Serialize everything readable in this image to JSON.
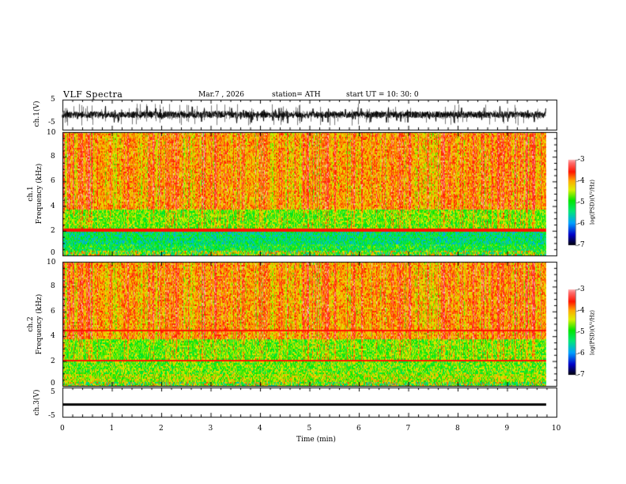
{
  "header": {
    "title": "VLF  Spectra",
    "date": "Mar.7  , 2026",
    "station": "station= ATH",
    "start": "start  UT  =    10: 30: 0"
  },
  "chart_data": [
    {
      "type": "line",
      "name": "ch1-waveform",
      "ylabel": "ch.1(V)",
      "ylim": [
        -5,
        5
      ],
      "yticks": [
        "5",
        "-5"
      ],
      "xlim": [
        0,
        10
      ],
      "data_end_min": 9.8
    },
    {
      "type": "heatmap",
      "name": "ch1-spectrogram",
      "ylabel_line1": "ch.1",
      "ylabel_line2": "Frequency (kHz)",
      "ylim": [
        0,
        10
      ],
      "yticks": [
        "0",
        "2",
        "4",
        "6",
        "8",
        "10"
      ],
      "xlim": [
        0,
        10
      ],
      "colorbar": {
        "label": "log(PSD)(V²/Hz)",
        "range": [
          -7,
          -3
        ],
        "ticks": [
          "-3",
          "-4",
          "-5",
          "-6",
          "-7"
        ]
      }
    },
    {
      "type": "heatmap",
      "name": "ch2-spectrogram",
      "ylabel_line1": "ch.2",
      "ylabel_line2": "Frequency (kHz)",
      "ylim": [
        0,
        10
      ],
      "yticks": [
        "0",
        "2",
        "4",
        "6",
        "8",
        "10"
      ],
      "xlim": [
        0,
        10
      ],
      "colorbar": {
        "label": "log(PSD)(V²/Hz)",
        "range": [
          -7,
          -3
        ],
        "ticks": [
          "-3",
          "-4",
          "-5",
          "-6",
          "-7"
        ]
      }
    },
    {
      "type": "line",
      "name": "ch3-waveform",
      "ylabel": "ch.3(V)",
      "ylim": [
        -5,
        5
      ],
      "yticks": [
        "5",
        "-5"
      ],
      "approx_level": -0.2,
      "xlim": [
        0,
        10
      ]
    }
  ],
  "xaxis": {
    "label": "Time  (min)",
    "ticks": [
      "0",
      "1",
      "2",
      "3",
      "4",
      "5",
      "6",
      "7",
      "8",
      "9",
      "10"
    ]
  }
}
